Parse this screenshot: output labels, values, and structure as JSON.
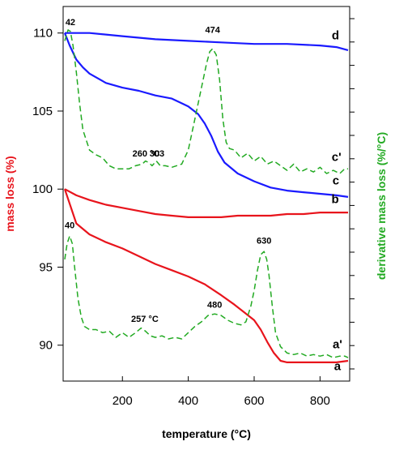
{
  "chart_data": {
    "type": "line",
    "xlabel": "temperature",
    "xlabel_unit": "(°C)",
    "ylabel_left": "mass loss (%)",
    "ylabel_right": "derivative mass loss",
    "ylabel_right_unit": "(%/°C)",
    "xlim": [
      20,
      890
    ],
    "ylim": [
      87.7,
      111.7
    ],
    "x_ticks": [
      200,
      400,
      600,
      800
    ],
    "y_ticks": [
      90,
      95,
      100,
      105,
      110
    ],
    "colors": {
      "tga": "#e8141c",
      "dtg": "#22aa22",
      "tga_blue": "#1a1aff"
    },
    "series": [
      {
        "name": "a",
        "label": "a",
        "role": "mass loss",
        "color": "#e8141c",
        "dashed": false,
        "x": [
          25,
          60,
          100,
          150,
          200,
          250,
          300,
          350,
          400,
          450,
          500,
          540,
          570,
          600,
          620,
          640,
          660,
          680,
          700,
          750,
          800,
          850,
          885
        ],
        "y": [
          100,
          97.8,
          97.1,
          96.6,
          96.2,
          95.7,
          95.2,
          94.8,
          94.4,
          93.9,
          93.2,
          92.6,
          92.1,
          91.6,
          91.0,
          90.2,
          89.5,
          89.0,
          88.9,
          88.9,
          88.9,
          88.9,
          89.0
        ]
      },
      {
        "name": "b",
        "label": "b",
        "role": "mass loss",
        "color": "#e8141c",
        "dashed": false,
        "x": [
          25,
          60,
          100,
          150,
          200,
          250,
          300,
          350,
          400,
          450,
          500,
          550,
          600,
          650,
          700,
          750,
          800,
          850,
          885
        ],
        "y": [
          100,
          99.6,
          99.3,
          99.0,
          98.8,
          98.6,
          98.4,
          98.3,
          98.2,
          98.2,
          98.2,
          98.3,
          98.3,
          98.3,
          98.4,
          98.4,
          98.5,
          98.5,
          98.5
        ]
      },
      {
        "name": "c",
        "label": "c",
        "role": "mass loss",
        "color": "#1a1aff",
        "dashed": false,
        "x": [
          25,
          40,
          60,
          80,
          100,
          150,
          200,
          250,
          300,
          350,
          400,
          430,
          450,
          470,
          490,
          510,
          550,
          600,
          650,
          700,
          750,
          800,
          850,
          885
        ],
        "y": [
          110,
          109.2,
          108.3,
          107.8,
          107.4,
          106.8,
          106.5,
          106.3,
          106.0,
          105.8,
          105.3,
          104.8,
          104.2,
          103.4,
          102.4,
          101.7,
          101.0,
          100.5,
          100.1,
          99.9,
          99.8,
          99.7,
          99.6,
          99.5
        ]
      },
      {
        "name": "d",
        "label": "d",
        "role": "mass loss",
        "color": "#1a1aff",
        "dashed": false,
        "x": [
          25,
          100,
          200,
          300,
          400,
          500,
          600,
          700,
          800,
          850,
          885
        ],
        "y": [
          110,
          110,
          109.8,
          109.6,
          109.5,
          109.4,
          109.3,
          109.3,
          109.2,
          109.1,
          108.9
        ]
      },
      {
        "name": "c'",
        "label": "c'",
        "role": "derivative",
        "color": "#22aa22",
        "dashed": true,
        "x": [
          25,
          35,
          42,
          50,
          60,
          70,
          80,
          100,
          120,
          140,
          160,
          180,
          200,
          220,
          240,
          260,
          270,
          280,
          290,
          303,
          315,
          330,
          350,
          380,
          400,
          420,
          440,
          455,
          465,
          474,
          485,
          495,
          505,
          515,
          525,
          540,
          560,
          580,
          600,
          620,
          640,
          660,
          680,
          700,
          720,
          740,
          760,
          780,
          800,
          820,
          840,
          860,
          875,
          885
        ],
        "y": [
          109.5,
          110.2,
          110.1,
          109.2,
          107.5,
          105.5,
          103.8,
          102.5,
          102.2,
          102.0,
          101.5,
          101.3,
          101.3,
          101.3,
          101.5,
          101.6,
          101.8,
          101.7,
          101.5,
          101.8,
          101.5,
          101.5,
          101.4,
          101.6,
          102.5,
          104.5,
          106.5,
          108.0,
          108.8,
          109.0,
          108.6,
          107.0,
          104.5,
          103.0,
          102.6,
          102.5,
          102.0,
          102.3,
          101.8,
          102.1,
          101.6,
          101.8,
          101.5,
          101.2,
          101.6,
          101.1,
          101.3,
          101.1,
          101.4,
          101.0,
          101.2,
          101.0,
          101.3,
          101.3
        ]
      },
      {
        "name": "a'",
        "label": "a'",
        "role": "derivative",
        "color": "#22aa22",
        "dashed": true,
        "x": [
          25,
          32,
          40,
          48,
          55,
          65,
          75,
          85,
          100,
          120,
          140,
          160,
          180,
          200,
          220,
          240,
          257,
          270,
          285,
          300,
          320,
          340,
          360,
          380,
          400,
          420,
          440,
          460,
          480,
          500,
          520,
          540,
          560,
          575,
          590,
          600,
          610,
          620,
          630,
          638,
          645,
          655,
          665,
          680,
          700,
          720,
          740,
          760,
          780,
          800,
          820,
          840,
          860,
          875,
          885
        ],
        "y": [
          95.5,
          96.5,
          97.0,
          96.5,
          95.0,
          93.0,
          91.8,
          91.2,
          91.0,
          91.0,
          90.8,
          90.9,
          90.5,
          90.8,
          90.5,
          90.8,
          91.1,
          90.9,
          90.6,
          90.5,
          90.6,
          90.4,
          90.5,
          90.4,
          90.8,
          91.2,
          91.5,
          91.9,
          92.0,
          91.9,
          91.6,
          91.4,
          91.3,
          91.5,
          92.5,
          93.5,
          94.8,
          95.8,
          96.0,
          95.5,
          94.5,
          92.5,
          90.8,
          89.9,
          89.5,
          89.4,
          89.5,
          89.3,
          89.4,
          89.3,
          89.4,
          89.2,
          89.3,
          89.3,
          89.2
        ]
      }
    ],
    "annotations": [
      {
        "text": "42",
        "x": 42,
        "y": 110.5
      },
      {
        "text": "474",
        "x": 474,
        "y": 110.0
      },
      {
        "text": "260 °C",
        "x": 272,
        "y": 102.1
      },
      {
        "text": "303",
        "x": 305,
        "y": 102.1
      },
      {
        "text": "40",
        "x": 40,
        "y": 97.5
      },
      {
        "text": "630",
        "x": 630,
        "y": 96.5
      },
      {
        "text": "257 °C",
        "x": 268,
        "y": 91.5
      },
      {
        "text": "480",
        "x": 480,
        "y": 92.4
      }
    ],
    "curve_labels": [
      {
        "text": "d",
        "x": 847,
        "y": 109.6
      },
      {
        "text": "c'",
        "x": 850,
        "y": 101.8
      },
      {
        "text": "c",
        "x": 848,
        "y": 100.3
      },
      {
        "text": "b",
        "x": 846,
        "y": 99.1
      },
      {
        "text": "a'",
        "x": 853,
        "y": 89.8
      },
      {
        "text": "a",
        "x": 853,
        "y": 88.4
      }
    ]
  }
}
